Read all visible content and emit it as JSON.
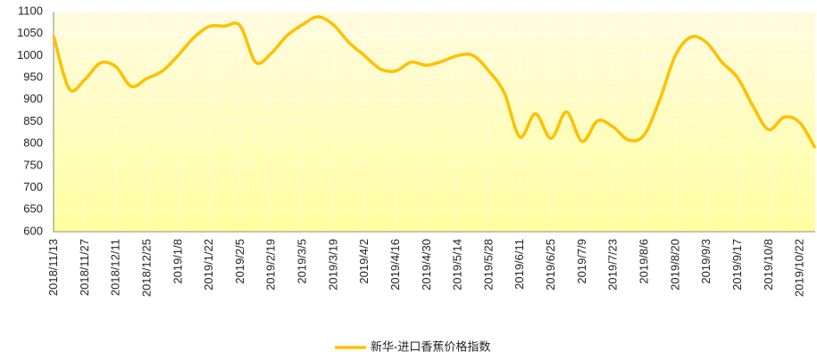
{
  "chart_data": {
    "type": "line",
    "categories": [
      "2018/11/13",
      null,
      "2018/11/27",
      null,
      "2018/12/11",
      null,
      "2018/12/25",
      null,
      "2019/1/8",
      null,
      "2019/1/22",
      null,
      "2019/2/5",
      null,
      "2019/2/19",
      null,
      "2019/3/5",
      null,
      "2019/3/19",
      null,
      "2019/4/2",
      null,
      "2019/4/16",
      null,
      "2019/4/30",
      null,
      "2019/5/14",
      null,
      "2019/5/28",
      null,
      "2019/6/11",
      null,
      "2019/6/25",
      null,
      "2019/7/9",
      null,
      "2019/7/23",
      null,
      "2019/8/6",
      null,
      "2019/8/20",
      null,
      "2019/9/3",
      null,
      "2019/9/17",
      null,
      "2019/10/8",
      null,
      "2019/10/22",
      null
    ],
    "series": [
      {
        "name": "新华-进口香蕉价格指数",
        "color": "#ffc000",
        "values": [
          1045,
          925,
          945,
          983,
          975,
          930,
          948,
          965,
          1000,
          1040,
          1066,
          1067,
          1068,
          985,
          1005,
          1045,
          1070,
          1088,
          1070,
          1030,
          1000,
          970,
          965,
          985,
          978,
          987,
          1000,
          1000,
          965,
          915,
          815,
          868,
          812,
          872,
          805,
          852,
          838,
          808,
          820,
          900,
          1000,
          1042,
          1030,
          985,
          950,
          885,
          832,
          860,
          848,
          790
        ]
      }
    ],
    "ylim": [
      600,
      1100
    ],
    "yticks": [
      600,
      650,
      700,
      750,
      800,
      850,
      900,
      950,
      1000,
      1050,
      1100
    ],
    "grid": true,
    "legend": "bottom"
  }
}
